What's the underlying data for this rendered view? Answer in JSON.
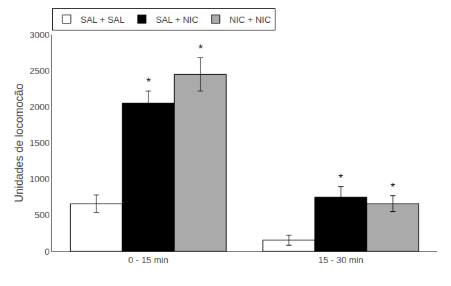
{
  "chart_data": {
    "type": "bar",
    "categories": [
      "0 - 15 min",
      "15 - 30 min"
    ],
    "series": [
      {
        "name": "SAL + SAL",
        "color": "#ffffff",
        "values": [
          660,
          155
        ],
        "errors": [
          120,
          70
        ]
      },
      {
        "name": "SAL + NIC",
        "color": "#000000",
        "values": [
          2050,
          750
        ],
        "errors": [
          170,
          145
        ]
      },
      {
        "name": "NIC + NIC",
        "color": "#aaaaaa",
        "values": [
          2450,
          660
        ],
        "errors": [
          230,
          110
        ]
      }
    ],
    "annotations": [
      {
        "text": "*",
        "category": "0 - 15 min",
        "series": "SAL + NIC"
      },
      {
        "text": "*",
        "category": "0 - 15 min",
        "series": "NIC + NIC"
      },
      {
        "text": "*",
        "category": "15 - 30 min",
        "series": "SAL + NIC"
      },
      {
        "text": "*",
        "category": "15 - 30 min",
        "series": "NIC + NIC"
      }
    ],
    "ylabel": "Unidades de locomocão",
    "ylim": [
      0,
      3000
    ],
    "yticks": [
      0,
      500,
      1000,
      1500,
      2000,
      2500,
      3000
    ],
    "grid": false,
    "legend": "upper left"
  }
}
